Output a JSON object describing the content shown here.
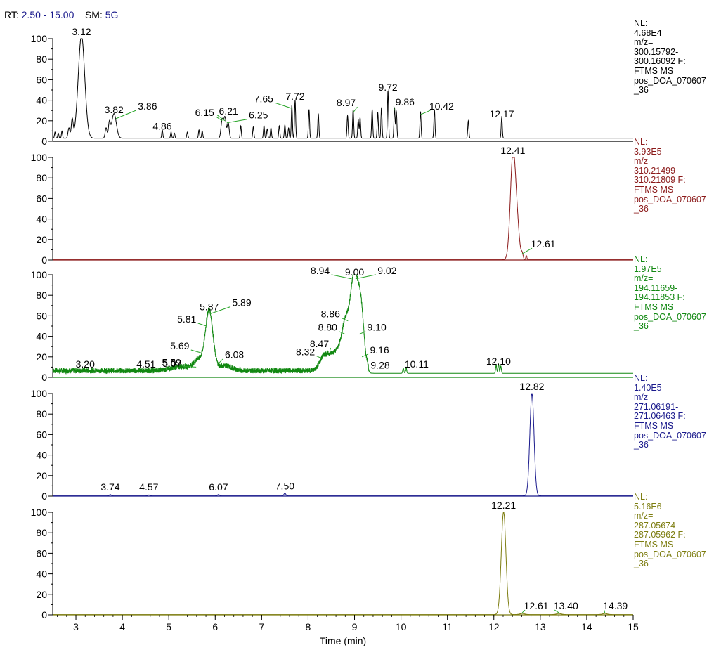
{
  "header": {
    "rt_label": "RT:",
    "rt_value": "2.50 - 15.00",
    "sm_label": "SM:",
    "sm_value": "5G"
  },
  "chart_data": {
    "type": "line",
    "xlabel": "Time (min)",
    "xlim": [
      2.5,
      15.0
    ],
    "x_ticks": [
      3,
      4,
      5,
      6,
      7,
      8,
      9,
      10,
      11,
      12,
      13,
      14,
      15
    ],
    "ylim": [
      0,
      100
    ],
    "y_ticks": [
      0,
      20,
      40,
      60,
      80,
      100
    ],
    "y_tick_labels": [
      "0",
      "20",
      "40",
      "60",
      "80",
      "100"
    ],
    "traces": [
      {
        "color": "#000000",
        "nl": "NL:\n4.68E4\nm/z=\n300.15792-\n300.16092 F:\nFTMS   MS\npos_DOA_070607\n_36",
        "baseline": 3,
        "noise": 0,
        "peaks": [
          {
            "rt": 3.12,
            "h": 100,
            "w": 0.07
          },
          {
            "rt": 2.55,
            "h": 6,
            "w": 0.012
          },
          {
            "rt": 2.62,
            "h": 5,
            "w": 0.012
          },
          {
            "rt": 2.7,
            "h": 7,
            "w": 0.012
          },
          {
            "rt": 2.85,
            "h": 10,
            "w": 0.02
          },
          {
            "rt": 2.92,
            "h": 18,
            "w": 0.02
          },
          {
            "rt": 3.82,
            "h": 24,
            "w": 0.05
          },
          {
            "rt": 3.65,
            "h": 10,
            "w": 0.02
          },
          {
            "rt": 3.72,
            "h": 14,
            "w": 0.02
          },
          {
            "rt": 4.86,
            "h": 8,
            "w": 0.012
          },
          {
            "rt": 5.05,
            "h": 6,
            "w": 0.012
          },
          {
            "rt": 5.12,
            "h": 5,
            "w": 0.012
          },
          {
            "rt": 5.4,
            "h": 6,
            "w": 0.012
          },
          {
            "rt": 5.65,
            "h": 8,
            "w": 0.012
          },
          {
            "rt": 5.72,
            "h": 7,
            "w": 0.012
          },
          {
            "rt": 6.15,
            "h": 18,
            "w": 0.025
          },
          {
            "rt": 6.21,
            "h": 20,
            "w": 0.025
          },
          {
            "rt": 6.28,
            "h": 15,
            "w": 0.02
          },
          {
            "rt": 6.55,
            "h": 12,
            "w": 0.012
          },
          {
            "rt": 6.82,
            "h": 11,
            "w": 0.012
          },
          {
            "rt": 7.05,
            "h": 12,
            "w": 0.012
          },
          {
            "rt": 7.12,
            "h": 9,
            "w": 0.012
          },
          {
            "rt": 7.2,
            "h": 10,
            "w": 0.012
          },
          {
            "rt": 7.38,
            "h": 12,
            "w": 0.012
          },
          {
            "rt": 7.5,
            "h": 13,
            "w": 0.012
          },
          {
            "rt": 7.58,
            "h": 10,
            "w": 0.012
          },
          {
            "rt": 7.65,
            "h": 32,
            "w": 0.012
          },
          {
            "rt": 7.72,
            "h": 37,
            "w": 0.012
          },
          {
            "rt": 8.02,
            "h": 28,
            "w": 0.012
          },
          {
            "rt": 8.22,
            "h": 24,
            "w": 0.012
          },
          {
            "rt": 8.85,
            "h": 22,
            "w": 0.012
          },
          {
            "rt": 8.97,
            "h": 28,
            "w": 0.012
          },
          {
            "rt": 9.08,
            "h": 18,
            "w": 0.012
          },
          {
            "rt": 9.12,
            "h": 20,
            "w": 0.012
          },
          {
            "rt": 9.38,
            "h": 28,
            "w": 0.012
          },
          {
            "rt": 9.5,
            "h": 25,
            "w": 0.012
          },
          {
            "rt": 9.58,
            "h": 30,
            "w": 0.012
          },
          {
            "rt": 9.72,
            "h": 46,
            "w": 0.012
          },
          {
            "rt": 9.86,
            "h": 30,
            "w": 0.012
          },
          {
            "rt": 9.9,
            "h": 26,
            "w": 0.012
          },
          {
            "rt": 10.42,
            "h": 26,
            "w": 0.012
          },
          {
            "rt": 10.72,
            "h": 28,
            "w": 0.012
          },
          {
            "rt": 11.45,
            "h": 17,
            "w": 0.012
          },
          {
            "rt": 12.17,
            "h": 20,
            "w": 0.012
          }
        ],
        "labels": [
          {
            "text": "3.12",
            "rt": 3.12,
            "y": 100
          },
          {
            "text": "3.82",
            "rt": 3.82,
            "y": 24
          },
          {
            "text": "3.86",
            "rt": 3.86,
            "y": 22,
            "dx": 45,
            "dy": -8
          },
          {
            "text": "4.86",
            "rt": 4.86,
            "y": 8
          },
          {
            "text": "6.15",
            "rt": 6.15,
            "y": 20,
            "dx": -25,
            "dy": -2
          },
          {
            "text": "6.21",
            "rt": 6.21,
            "y": 20,
            "dx": 5,
            "dy": -4
          },
          {
            "text": "6.25",
            "rt": 6.25,
            "y": 18,
            "dx": 45,
            "dy": -1
          },
          {
            "text": "7.65",
            "rt": 7.65,
            "y": 32,
            "dx": -40,
            "dy": -4
          },
          {
            "text": "7.72",
            "rt": 7.72,
            "y": 37
          },
          {
            "text": "8.97",
            "rt": 8.97,
            "y": 28,
            "dx": -10,
            "dy": -4
          },
          {
            "text": "9.72",
            "rt": 9.72,
            "y": 46
          },
          {
            "text": "9.86",
            "rt": 9.86,
            "y": 30,
            "dx": 15,
            "dy": -2
          },
          {
            "text": "10.42",
            "rt": 10.42,
            "y": 26,
            "dx": 30,
            "dy": -2
          },
          {
            "text": "12.17",
            "rt": 12.17,
            "y": 20
          }
        ]
      },
      {
        "color": "#8b1a1a",
        "nl": "NL:\n3.93E5\nm/z=\n310.21499-\n310.21809 F:\nFTMS   MS\npos_DOA_070607\n_36",
        "baseline": 0.3,
        "noise": 0,
        "peaks": [
          {
            "rt": 12.41,
            "h": 100,
            "w": 0.055
          },
          {
            "rt": 12.5,
            "h": 30,
            "w": 0.05
          },
          {
            "rt": 12.61,
            "h": 5,
            "w": 0.02
          },
          {
            "rt": 12.7,
            "h": 4,
            "w": 0.012
          }
        ],
        "labels": [
          {
            "text": "12.41",
            "rt": 12.41,
            "y": 100
          },
          {
            "text": "12.61",
            "rt": 12.61,
            "y": 6,
            "dx": 30,
            "dy": -4
          }
        ]
      },
      {
        "color": "#118811",
        "nl": "NL:\n1.97E5\nm/z=\n194.11659-\n194.11853 F:\nFTMS   MS\npos_DOA_070607\n_36",
        "baseline": 4,
        "noise": 5,
        "noise_range": [
          2.5,
          9.3
        ],
        "peaks": [
          {
            "rt": 5.87,
            "h": 58,
            "w": 0.08
          },
          {
            "rt": 5.65,
            "h": 10,
            "w": 0.1
          },
          {
            "rt": 5.3,
            "h": 4,
            "w": 0.25
          },
          {
            "rt": 6.2,
            "h": 5,
            "w": 0.15
          },
          {
            "rt": 8.35,
            "h": 14,
            "w": 0.1
          },
          {
            "rt": 8.6,
            "h": 18,
            "w": 0.12
          },
          {
            "rt": 8.8,
            "h": 40,
            "w": 0.08
          },
          {
            "rt": 9.0,
            "h": 94,
            "w": 0.09
          },
          {
            "rt": 9.15,
            "h": 45,
            "w": 0.06
          },
          {
            "rt": 9.28,
            "h": 4,
            "w": 0.02
          },
          {
            "rt": 10.05,
            "h": 5,
            "w": 0.012
          },
          {
            "rt": 10.11,
            "h": 6,
            "w": 0.012
          },
          {
            "rt": 12.05,
            "h": 8,
            "w": 0.012
          },
          {
            "rt": 12.1,
            "h": 9,
            "w": 0.012
          },
          {
            "rt": 12.15,
            "h": 7,
            "w": 0.012
          }
        ],
        "labels": [
          {
            "text": "3.20",
            "rt": 3.2,
            "y": 6
          },
          {
            "text": "4.51",
            "rt": 4.51,
            "y": 6
          },
          {
            "text": "5.07",
            "rt": 5.07,
            "y": 7
          },
          {
            "text": "5.59",
            "rt": 5.59,
            "y": 10,
            "dx": -35,
            "dy": 3
          },
          {
            "text": "5.69",
            "rt": 5.69,
            "y": 24,
            "dx": -30,
            "dy": 0
          },
          {
            "text": "5.81",
            "rt": 5.81,
            "y": 50,
            "dx": -28,
            "dy": 0
          },
          {
            "text": "5.87",
            "rt": 5.87,
            "y": 62
          },
          {
            "text": "5.89",
            "rt": 5.89,
            "y": 62,
            "dx": 45,
            "dy": -6
          },
          {
            "text": "6.08",
            "rt": 6.08,
            "y": 14,
            "dx": 22,
            "dy": -2
          },
          {
            "text": "8.32",
            "rt": 8.32,
            "y": 18,
            "dx": -25,
            "dy": 0
          },
          {
            "text": "8.47",
            "rt": 8.47,
            "y": 26,
            "dx": -15,
            "dy": 0
          },
          {
            "text": "8.80",
            "rt": 8.8,
            "y": 42,
            "dx": -25,
            "dy": 0
          },
          {
            "text": "8.86",
            "rt": 8.86,
            "y": 55,
            "dx": -25,
            "dy": 0
          },
          {
            "text": "8.94",
            "rt": 8.94,
            "y": 96,
            "dx": -45,
            "dy": -2
          },
          {
            "text": "9.00",
            "rt": 9.0,
            "y": 96
          },
          {
            "text": "9.02",
            "rt": 9.02,
            "y": 96,
            "dx": 45,
            "dy": -2
          },
          {
            "text": "9.10",
            "rt": 9.1,
            "y": 42,
            "dx": 25,
            "dy": 0
          },
          {
            "text": "9.16",
            "rt": 9.16,
            "y": 20,
            "dx": 25,
            "dy": 0
          },
          {
            "text": "9.28",
            "rt": 9.28,
            "y": 5,
            "dx": 18,
            "dy": 0
          },
          {
            "text": "10.11",
            "rt": 10.11,
            "y": 6,
            "dx": 15,
            "dy": 0
          },
          {
            "text": "12.10",
            "rt": 12.1,
            "y": 9
          }
        ]
      },
      {
        "color": "#1a1a8c",
        "nl": "NL:\n1.40E5\nm/z=\n271.06191-\n271.06463 F:\nFTMS   MS\npos_DOA_070607\n_36",
        "baseline": 0.3,
        "noise": 0,
        "peaks": [
          {
            "rt": 12.82,
            "h": 100,
            "w": 0.045
          },
          {
            "rt": 3.74,
            "h": 1.2,
            "w": 0.02
          },
          {
            "rt": 4.57,
            "h": 0.8,
            "w": 0.02
          },
          {
            "rt": 6.07,
            "h": 1.2,
            "w": 0.02
          },
          {
            "rt": 7.5,
            "h": 2.5,
            "w": 0.02
          }
        ],
        "labels": [
          {
            "text": "12.82",
            "rt": 12.82,
            "y": 100
          },
          {
            "text": "3.74",
            "rt": 3.74,
            "y": 2
          },
          {
            "text": "4.57",
            "rt": 4.57,
            "y": 2
          },
          {
            "text": "6.07",
            "rt": 6.07,
            "y": 2
          },
          {
            "text": "7.50",
            "rt": 7.5,
            "y": 3
          }
        ]
      },
      {
        "color": "#7d7d10",
        "nl": "NL:\n5.16E6\nm/z=\n287.05674-\n287.05962 F:\nFTMS   MS\npos_DOA_070607\n_36",
        "baseline": 0.3,
        "noise": 0,
        "peaks": [
          {
            "rt": 12.21,
            "h": 100,
            "w": 0.05
          },
          {
            "rt": 12.61,
            "h": 1,
            "w": 0.05
          },
          {
            "rt": 13.4,
            "h": 1,
            "w": 0.05
          },
          {
            "rt": 14.39,
            "h": 1,
            "w": 0.05
          }
        ],
        "labels": [
          {
            "text": "12.21",
            "rt": 12.21,
            "y": 100
          },
          {
            "text": "12.61",
            "rt": 12.61,
            "y": 2,
            "dx": 20,
            "dy": 0
          },
          {
            "text": "13.40",
            "rt": 13.4,
            "y": 2,
            "dx": 10,
            "dy": 0
          },
          {
            "text": "14.39",
            "rt": 14.39,
            "y": 2,
            "dx": 15,
            "dy": 0
          }
        ]
      }
    ]
  }
}
